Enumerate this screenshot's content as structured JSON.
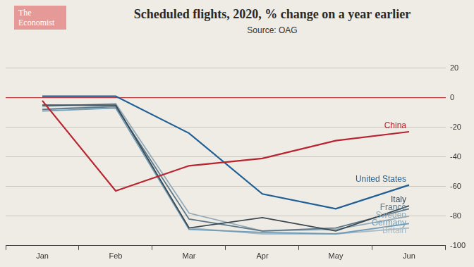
{
  "chart_data": {
    "type": "line",
    "title": "Scheduled flights, 2020, % change on a year earlier",
    "subtitle": "Source: OAG",
    "logo": "The Economist",
    "categories": [
      "Jan",
      "Feb",
      "Mar",
      "Apr",
      "May",
      "Jun"
    ],
    "series": [
      {
        "name": "China",
        "color": "#b8242f",
        "values": [
          -2,
          -63,
          -46,
          -41,
          -29,
          -23
        ]
      },
      {
        "name": "United States",
        "color": "#1f5f95",
        "values": [
          1,
          1,
          -24,
          -65,
          -75,
          -59
        ]
      },
      {
        "name": "Italy",
        "color": "#3b4852",
        "values": [
          -5,
          -5,
          -88,
          -81,
          -90,
          -73
        ]
      },
      {
        "name": "France",
        "color": "#5c7888",
        "values": [
          -8,
          -6,
          -82,
          -90,
          -88,
          -75
        ]
      },
      {
        "name": "Sweden",
        "color": "#93abb9",
        "values": [
          -6,
          -4,
          -78,
          -90,
          -89,
          -80
        ]
      },
      {
        "name": "Germany",
        "color": "#6f9cb6",
        "values": [
          -9,
          -7,
          -89,
          -91,
          -92,
          -85
        ]
      },
      {
        "name": "Britain",
        "color": "#a7bac5",
        "values": [
          -8,
          -5,
          -88,
          -92,
          -92,
          -88
        ]
      }
    ],
    "ylim": [
      -100,
      20
    ],
    "yticks": [
      20,
      0,
      -20,
      -40,
      -60,
      -80,
      -100
    ],
    "grid": true
  }
}
